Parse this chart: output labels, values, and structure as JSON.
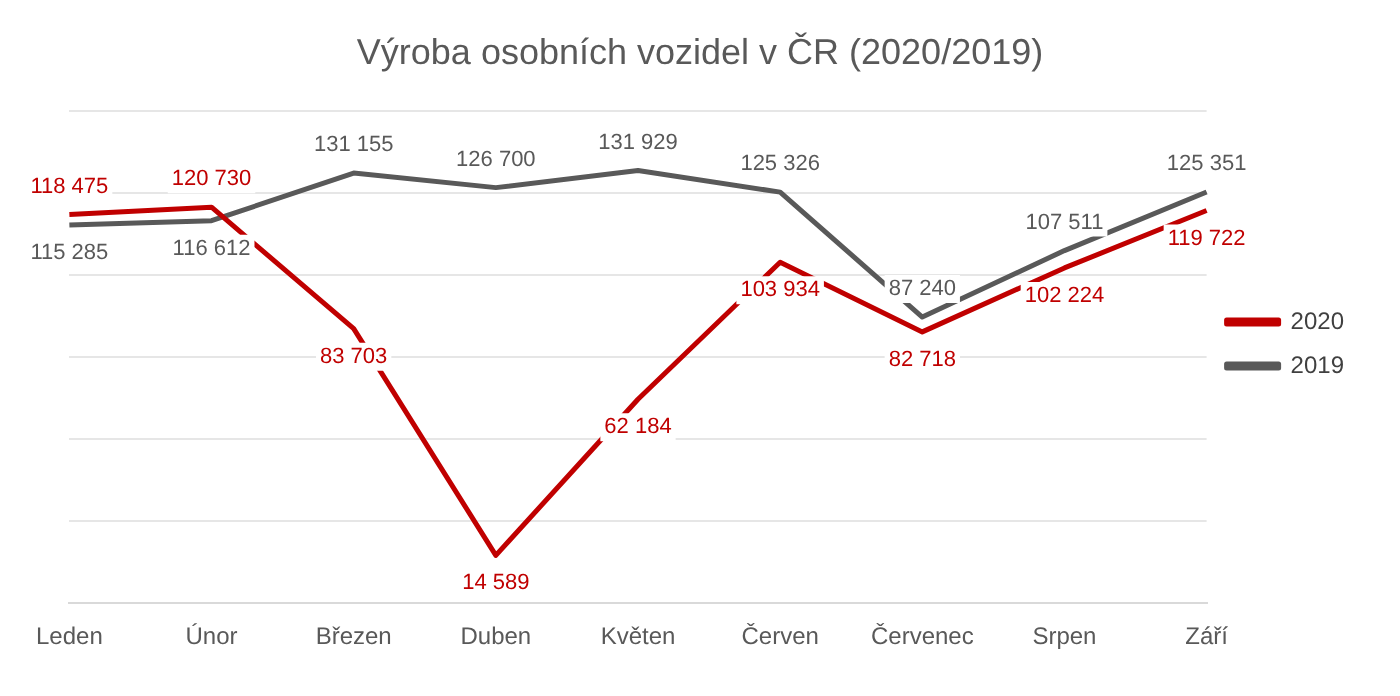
{
  "chart_data": {
    "type": "line",
    "title": "Výroba osobních vozidel v ČR (2020/2019)",
    "categories": [
      "Leden",
      "Únor",
      "Březen",
      "Duben",
      "Květen",
      "Červen",
      "Červenec",
      "Srpen",
      "Září"
    ],
    "series": [
      {
        "name": "2020",
        "color": "#c00000",
        "values": [
          118475,
          120730,
          83703,
          14589,
          62184,
          103934,
          82718,
          102224,
          119722
        ],
        "value_labels": [
          "118 475",
          "120 730",
          "83 703",
          "14 589",
          "62 184",
          "103 934",
          "82 718",
          "102 224",
          "119 722"
        ]
      },
      {
        "name": "2019",
        "color": "#595959",
        "values": [
          115285,
          116612,
          131155,
          126700,
          131929,
          125326,
          87240,
          107511,
          125351
        ],
        "value_labels": [
          "115 285",
          "116 612",
          "131 155",
          "126 700",
          "131 929",
          "125 326",
          "87 240",
          "107 511",
          "125 351"
        ]
      }
    ],
    "ylim": [
      0,
      150000
    ],
    "yticks": [
      {
        "value": 0,
        "label": null
      },
      {
        "value": 25000,
        "label": null
      },
      {
        "value": 50000,
        "label": null
      },
      {
        "value": 75000,
        "label": null
      },
      {
        "value": 100000,
        "label": null
      },
      {
        "value": 125000,
        "label": null
      },
      {
        "value": 150000,
        "label": null
      }
    ],
    "tick_labels": "x",
    "grid": "y",
    "legend": "right",
    "marker": "none",
    "line_style": "solid"
  }
}
